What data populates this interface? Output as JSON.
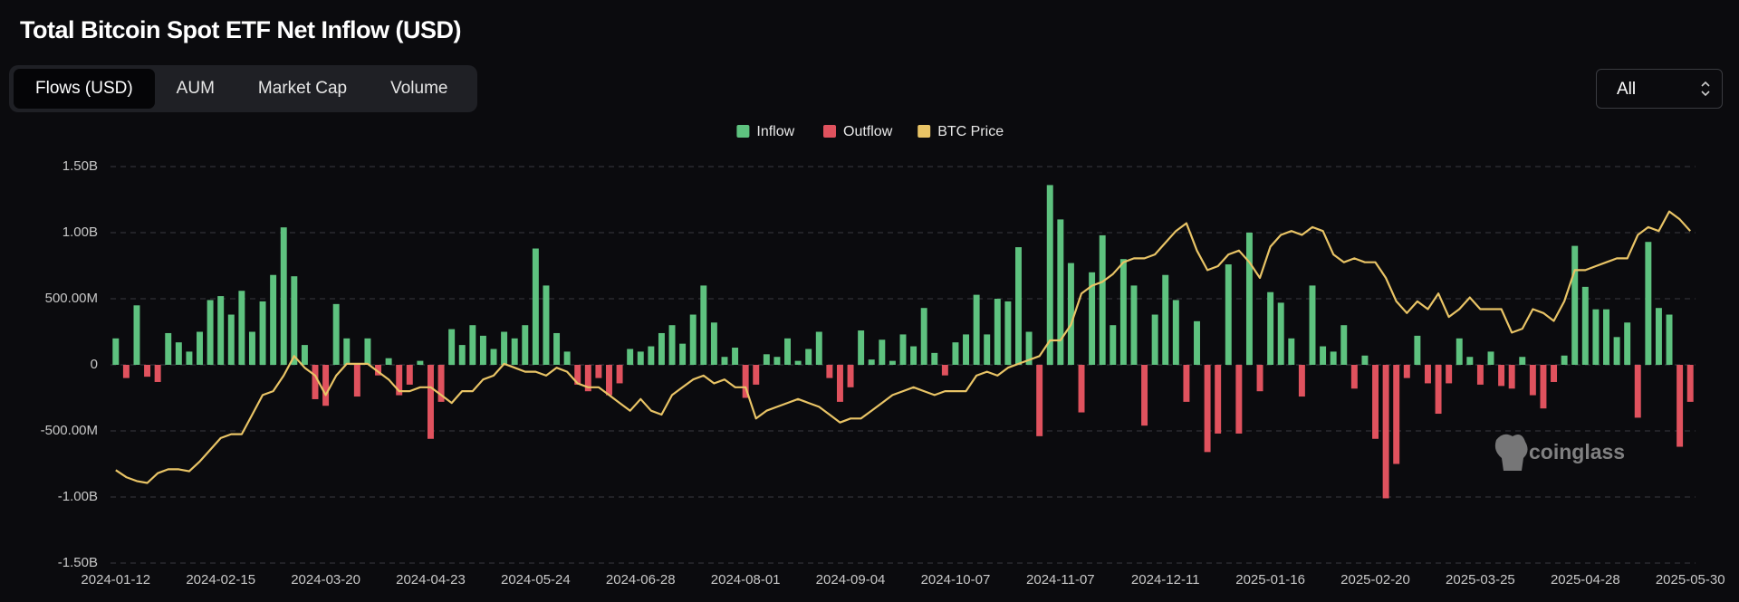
{
  "ui": {
    "tabs": [
      "Flows (USD)",
      "AUM",
      "Market Cap",
      "Volume"
    ],
    "range_select": "All",
    "watermark": "coinglass"
  },
  "chart_data": {
    "type": "bar",
    "title": "Total Bitcoin Spot ETF Net Inflow (USD)",
    "categories": [
      "2024-01-12",
      null,
      null,
      null,
      null,
      null,
      null,
      null,
      null,
      null,
      "2024-02-15",
      null,
      null,
      null,
      null,
      null,
      null,
      null,
      null,
      null,
      "2024-03-20",
      null,
      null,
      null,
      null,
      null,
      null,
      null,
      null,
      null,
      "2024-04-23",
      null,
      null,
      null,
      null,
      null,
      null,
      null,
      null,
      null,
      "2024-05-24",
      null,
      null,
      null,
      null,
      null,
      null,
      null,
      null,
      null,
      "2024-06-28",
      null,
      null,
      null,
      null,
      null,
      null,
      null,
      null,
      null,
      "2024-08-01",
      null,
      null,
      null,
      null,
      null,
      null,
      null,
      null,
      null,
      "2024-09-04",
      null,
      null,
      null,
      null,
      null,
      null,
      null,
      null,
      null,
      "2024-10-07",
      null,
      null,
      null,
      null,
      null,
      null,
      null,
      null,
      null,
      "2024-11-07",
      null,
      null,
      null,
      null,
      null,
      null,
      null,
      null,
      null,
      "2024-12-11",
      null,
      null,
      null,
      null,
      null,
      null,
      null,
      null,
      null,
      "2025-01-16",
      null,
      null,
      null,
      null,
      null,
      null,
      null,
      null,
      null,
      "2025-02-20",
      null,
      null,
      null,
      null,
      null,
      null,
      null,
      null,
      null,
      "2025-03-25",
      null,
      null,
      null,
      null,
      null,
      null,
      null,
      null,
      null,
      "2025-04-28",
      null,
      null,
      null,
      null,
      null,
      null,
      null,
      null,
      null,
      "2025-05-30"
    ],
    "series": [
      {
        "name": "Inflow",
        "type": "bar",
        "color": "#5ec27f",
        "values": [
          200000000,
          null,
          450000000,
          null,
          null,
          240000000,
          170000000,
          100000000,
          250000000,
          490000000,
          520000000,
          380000000,
          560000000,
          250000000,
          480000000,
          680000000,
          1040000000,
          670000000,
          150000000,
          null,
          null,
          460000000,
          200000000,
          null,
          200000000,
          null,
          50000000,
          null,
          null,
          30000000,
          null,
          null,
          270000000,
          150000000,
          300000000,
          220000000,
          120000000,
          250000000,
          200000000,
          300000000,
          880000000,
          600000000,
          240000000,
          100000000,
          null,
          null,
          null,
          null,
          null,
          120000000,
          100000000,
          140000000,
          240000000,
          300000000,
          160000000,
          380000000,
          600000000,
          320000000,
          60000000,
          130000000,
          null,
          null,
          80000000,
          60000000,
          200000000,
          30000000,
          120000000,
          250000000,
          null,
          null,
          null,
          260000000,
          40000000,
          190000000,
          30000000,
          230000000,
          140000000,
          430000000,
          90000000,
          null,
          170000000,
          230000000,
          530000000,
          230000000,
          500000000,
          480000000,
          890000000,
          250000000,
          null,
          1360000000,
          1100000000,
          770000000,
          null,
          700000000,
          980000000,
          300000000,
          800000000,
          600000000,
          null,
          380000000,
          680000000,
          490000000,
          null,
          330000000,
          null,
          null,
          760000000,
          null,
          1000000000,
          null,
          550000000,
          470000000,
          200000000,
          null,
          600000000,
          140000000,
          100000000,
          300000000,
          null,
          70000000,
          null,
          null,
          null,
          null,
          220000000,
          null,
          null,
          null,
          200000000,
          60000000,
          null,
          100000000,
          null,
          null,
          60000000,
          null,
          null,
          null,
          70000000,
          900000000,
          590000000,
          420000000,
          420000000,
          210000000,
          320000000,
          null,
          930000000,
          430000000,
          380000000,
          null,
          null
        ]
      },
      {
        "name": "Outflow",
        "type": "bar",
        "color": "#e0525e",
        "values": [
          null,
          -100000000,
          null,
          -90000000,
          -130000000,
          null,
          null,
          null,
          null,
          null,
          null,
          null,
          null,
          null,
          null,
          null,
          null,
          null,
          null,
          -260000000,
          -310000000,
          null,
          null,
          -240000000,
          null,
          -80000000,
          null,
          -230000000,
          -150000000,
          null,
          -560000000,
          -280000000,
          null,
          null,
          null,
          null,
          null,
          null,
          null,
          null,
          null,
          null,
          null,
          null,
          -150000000,
          -200000000,
          -100000000,
          -230000000,
          -140000000,
          null,
          null,
          null,
          null,
          null,
          null,
          null,
          null,
          null,
          null,
          null,
          -250000000,
          -150000000,
          null,
          null,
          null,
          null,
          null,
          null,
          -100000000,
          -280000000,
          -170000000,
          null,
          null,
          null,
          null,
          null,
          null,
          null,
          null,
          -80000000,
          null,
          null,
          null,
          null,
          null,
          null,
          null,
          null,
          -540000000,
          null,
          null,
          null,
          -360000000,
          null,
          null,
          null,
          null,
          null,
          -460000000,
          null,
          null,
          null,
          -280000000,
          null,
          -660000000,
          -520000000,
          null,
          -520000000,
          null,
          -200000000,
          null,
          null,
          null,
          -240000000,
          null,
          null,
          null,
          null,
          -180000000,
          null,
          -560000000,
          -1010000000,
          -750000000,
          -100000000,
          null,
          -140000000,
          -370000000,
          -140000000,
          null,
          null,
          -150000000,
          null,
          -160000000,
          -180000000,
          null,
          -230000000,
          -330000000,
          -130000000,
          null,
          null,
          null,
          null,
          null,
          null,
          null,
          -400000000,
          null,
          null,
          null,
          -620000000,
          -280000000
        ]
      },
      {
        "name": "BTC Price",
        "type": "line",
        "axis": "y2",
        "color": "#e9c466",
        "values": [
          42800,
          41000,
          40000,
          39500,
          42000,
          43000,
          43000,
          42500,
          45000,
          48000,
          51000,
          52000,
          52000,
          57000,
          62000,
          63000,
          67000,
          72000,
          69000,
          67000,
          62000,
          67000,
          70000,
          70000,
          70000,
          68000,
          66000,
          63000,
          63000,
          64000,
          64000,
          62000,
          60000,
          63000,
          63000,
          66000,
          67000,
          70000,
          69000,
          68000,
          68000,
          67000,
          69000,
          68000,
          65000,
          64000,
          64000,
          62000,
          60000,
          58000,
          61000,
          58000,
          57000,
          62000,
          64000,
          66000,
          67000,
          65000,
          66000,
          64000,
          64000,
          56000,
          58000,
          59000,
          60000,
          61000,
          60000,
          59000,
          57000,
          55000,
          56000,
          56000,
          58000,
          60000,
          62000,
          63000,
          64000,
          63000,
          62000,
          63000,
          63000,
          63000,
          67000,
          68000,
          67000,
          69000,
          70000,
          71000,
          72000,
          76000,
          76000,
          80000,
          88000,
          90000,
          91000,
          93000,
          96000,
          97000,
          97000,
          98000,
          101000,
          104000,
          106000,
          99000,
          94000,
          95000,
          98000,
          99000,
          96000,
          92000,
          100000,
          103000,
          104000,
          103000,
          105000,
          104000,
          98000,
          96000,
          97000,
          96000,
          96000,
          92000,
          86000,
          83000,
          86000,
          84000,
          88000,
          82000,
          84000,
          87000,
          84000,
          84000,
          84000,
          78000,
          79000,
          84000,
          83000,
          81000,
          86000,
          94000,
          94000,
          95000,
          96000,
          97000,
          97000,
          103000,
          105000,
          104000,
          109000,
          107000,
          104000
        ]
      }
    ],
    "ylim": [
      -1500000000,
      1500000000
    ],
    "yticks": [
      {
        "value": -1500000000,
        "label": "-1.50B"
      },
      {
        "value": -1000000000,
        "label": "-1.00B"
      },
      {
        "value": -500000000,
        "label": "-500.00M"
      },
      0,
      {
        "value": 500000000,
        "label": "500.00M"
      },
      {
        "value": 1000000000,
        "label": "1.00B"
      },
      {
        "value": 1500000000,
        "label": "1.50B"
      }
    ],
    "y2lim": [
      19000,
      120500
    ],
    "grid": true,
    "legend": "top"
  }
}
